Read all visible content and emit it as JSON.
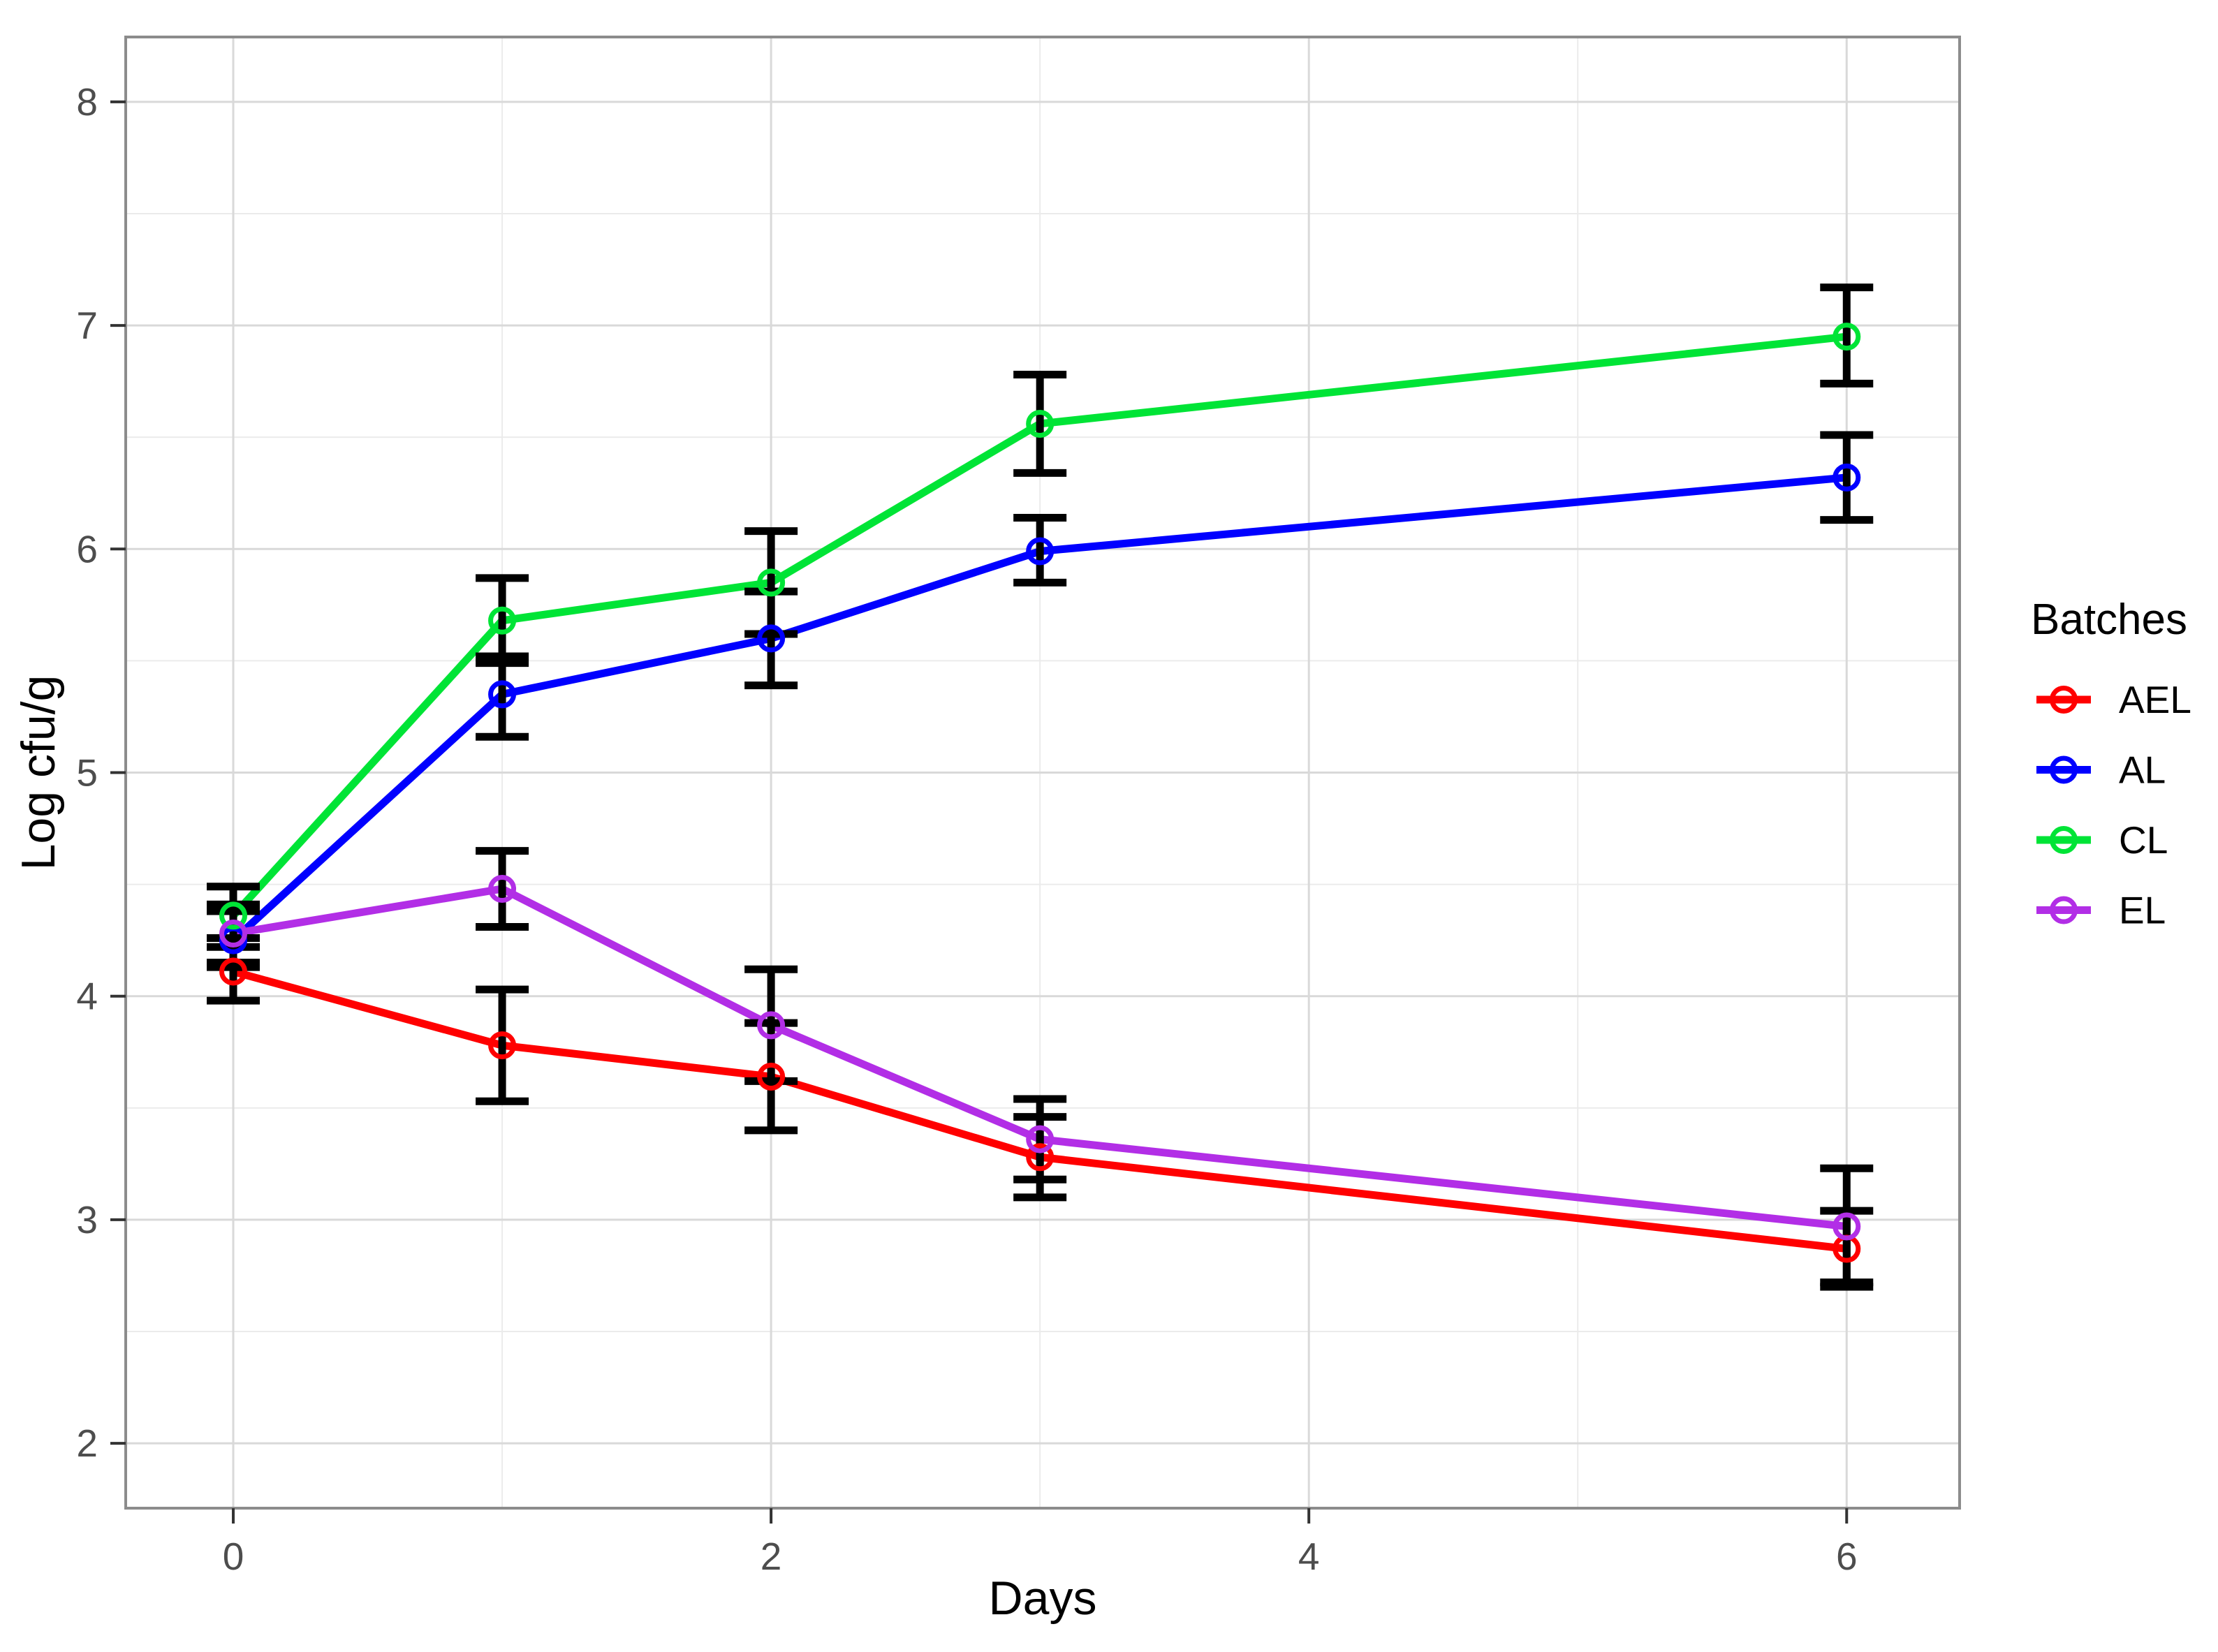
{
  "chart_data": {
    "type": "line",
    "title": "",
    "xlabel": "Days",
    "ylabel": "Log cfu/g",
    "legend_title": "Batches",
    "legend_position": "right",
    "grid": true,
    "x": [
      0,
      1,
      2,
      3,
      6
    ],
    "x_ticks": [
      0,
      2,
      4,
      6
    ],
    "x_minor": [
      1,
      3,
      5
    ],
    "y_ticks": [
      8,
      7,
      6,
      5,
      4,
      3,
      2
    ],
    "y_minor": [
      7.5,
      6.5,
      5.5,
      4.5,
      3.5,
      2.5
    ],
    "xlim": [
      -0.4,
      6.42
    ],
    "ylim": [
      1.71,
      8.29
    ],
    "point_shape": "open-circle",
    "error_bars": "black vertical bars with caps",
    "series": [
      {
        "name": "AEL",
        "color": "#FF0000",
        "values": [
          4.11,
          3.78,
          3.64,
          3.28,
          2.87
        ],
        "err_low": [
          3.98,
          3.53,
          3.4,
          3.1,
          2.7
        ],
        "err_high": [
          4.26,
          4.03,
          3.88,
          3.46,
          3.04
        ]
      },
      {
        "name": "AL",
        "color": "#0000FF",
        "values": [
          4.25,
          5.35,
          5.6,
          5.99,
          6.32
        ],
        "err_low": [
          4.13,
          5.16,
          5.39,
          5.85,
          6.13
        ],
        "err_high": [
          4.38,
          5.52,
          5.81,
          6.14,
          6.51
        ]
      },
      {
        "name": "CL",
        "color": "#00E436",
        "values": [
          4.36,
          5.68,
          5.85,
          6.56,
          6.95
        ],
        "err_low": [
          4.22,
          5.49,
          5.62,
          6.34,
          6.74
        ],
        "err_high": [
          4.49,
          5.87,
          6.08,
          6.78,
          7.17
        ]
      },
      {
        "name": "EL",
        "color": "#B22EE6",
        "values": [
          4.28,
          4.48,
          3.87,
          3.36,
          2.97
        ],
        "err_low": [
          4.15,
          4.31,
          3.62,
          3.18,
          2.72
        ],
        "err_high": [
          4.41,
          4.65,
          4.12,
          3.54,
          3.23
        ]
      }
    ],
    "colors": {
      "background": "#FFFFFF",
      "panel_border": "#8C8C8C",
      "grid_major": "#D9D9D9",
      "grid_minor": "#EBEBEB",
      "tick_mark": "#333333",
      "tick_label": "#4D4D4D",
      "axis_title": "#000000",
      "error_bar": "#000000"
    }
  }
}
